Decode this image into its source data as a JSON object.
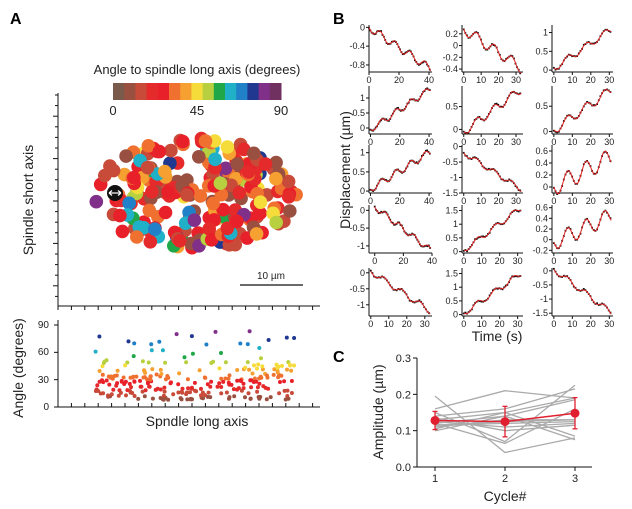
{
  "panels": {
    "a": "A",
    "b": "B",
    "c": "C"
  },
  "panel_a": {
    "colorbar": {
      "title": "Angle to spindle long axis (degrees)",
      "tick_labels": [
        "0",
        "45",
        "90"
      ],
      "range": [
        0,
        90
      ],
      "colors": [
        "#7a5a4a",
        "#9a5040",
        "#c84a38",
        "#e42a2a",
        "#e8202a",
        "#f07030",
        "#f5a030",
        "#f5dc3a",
        "#b8d040",
        "#20a848",
        "#20b0c8",
        "#2080c8",
        "#203890",
        "#803088",
        "#703060"
      ]
    },
    "map": {
      "ylabel": "Spindle short axis",
      "scale_bar_label": "10 µm",
      "marker_icon": "double-arrow-icon"
    },
    "angle_plot": {
      "ylabel": "Angle (degrees)",
      "xlabel": "Spndle long axis",
      "yticks": [
        "0",
        "30",
        "60",
        "90"
      ],
      "ylim": [
        0,
        90
      ]
    }
  },
  "chart_data": [
    {
      "type": "line",
      "panel": "B",
      "ylabel": "Displacement (µm)",
      "xlabel": "Time (s)",
      "series_colors": {
        "data": "#111111",
        "fit": "#e02020"
      },
      "subplots": [
        {
          "xlim": [
            0,
            42
          ],
          "xticks": [
            0,
            20,
            40
          ],
          "ylim": [
            -0.95,
            0.05
          ],
          "yticks": [
            0,
            -0.4,
            -0.8
          ],
          "trend": [
            0,
            -0.88
          ],
          "amplitude": 0.08
        },
        {
          "xlim": [
            -1,
            34
          ],
          "xticks": [
            0,
            10,
            20,
            30
          ],
          "ylim": [
            -0.45,
            0.35
          ],
          "yticks": [
            0.2,
            0,
            -0.2,
            -0.4
          ],
          "trend": [
            0.28,
            -0.38
          ],
          "amplitude": 0.09
        },
        {
          "xlim": [
            -1,
            32
          ],
          "xticks": [
            0,
            10,
            20,
            30
          ],
          "ylim": [
            -0.05,
            1.2
          ],
          "yticks": [
            0,
            0.5,
            1.0
          ],
          "trend": [
            0.05,
            1.08
          ],
          "amplitude": 0.09
        },
        {
          "xlim": [
            -1,
            42
          ],
          "xticks": [
            0,
            20,
            40
          ],
          "ylim": [
            -0.2,
            1.4
          ],
          "yticks": [
            0,
            0.5,
            1.0
          ],
          "trend": [
            -0.05,
            1.3
          ],
          "amplitude": 0.1
        },
        {
          "xlim": [
            -1,
            34
          ],
          "xticks": [
            0,
            10,
            20,
            30
          ],
          "ylim": [
            -0.1,
            0.95
          ],
          "yticks": [
            0,
            0.5
          ],
          "trend": [
            -0.05,
            0.88
          ],
          "amplitude": 0.09
        },
        {
          "xlim": [
            -1,
            32
          ],
          "xticks": [
            0,
            10,
            20,
            30
          ],
          "ylim": [
            -0.05,
            0.9
          ],
          "yticks": [
            0,
            0.5
          ],
          "trend": [
            0.03,
            0.82
          ],
          "amplitude": 0.09
        },
        {
          "xlim": [
            -1,
            42
          ],
          "xticks": [
            0,
            20,
            40
          ],
          "ylim": [
            -0.05,
            1.2
          ],
          "yticks": [
            0,
            0.5,
            1.0
          ],
          "trend": [
            0.05,
            1.02
          ],
          "amplitude": 0.09
        },
        {
          "xlim": [
            -1,
            34
          ],
          "xticks": [
            0,
            10,
            20,
            30
          ],
          "ylim": [
            -1.5,
            0.05
          ],
          "yticks": [
            0,
            -0.5,
            -1.0,
            -1.5
          ],
          "trend": [
            -0.2,
            -1.38
          ],
          "amplitude": 0.08
        },
        {
          "xlim": [
            -1,
            32
          ],
          "xticks": [
            0,
            10,
            20,
            30
          ],
          "ylim": [
            -0.1,
            0.7
          ],
          "yticks": [
            0,
            0.2,
            0.4,
            0.6
          ],
          "trend": [
            0.0,
            0.5
          ],
          "amplitude": 0.15
        },
        {
          "xlim": [
            -4,
            40
          ],
          "xticks": [
            0,
            20,
            40
          ],
          "ylim": [
            -1.2,
            0.15
          ],
          "yticks": [
            0,
            -0.5,
            -1.0
          ],
          "trend": [
            0.1,
            -1.12
          ],
          "amplitude": 0.08
        },
        {
          "xlim": [
            -1,
            33
          ],
          "xticks": [
            0,
            10,
            20,
            30
          ],
          "ylim": [
            -0.05,
            1.7
          ],
          "yticks": [
            0,
            0.5,
            1.0,
            1.5
          ],
          "trend": [
            0.05,
            1.6
          ],
          "amplitude": 0.1
        },
        {
          "xlim": [
            -1,
            32
          ],
          "xticks": [
            0,
            10,
            20,
            30
          ],
          "ylim": [
            -0.25,
            0.65
          ],
          "yticks": [
            -0.2,
            0,
            0.2,
            0.4,
            0.6
          ],
          "trend": [
            -0.05,
            0.45
          ],
          "amplitude": 0.15
        },
        {
          "xlim": [
            -1,
            34
          ],
          "xticks": [
            0,
            10,
            20,
            30
          ],
          "ylim": [
            -1.35,
            0.15
          ],
          "yticks": [
            0,
            -0.5,
            -1.0
          ],
          "trend": [
            0.05,
            -1.2
          ],
          "amplitude": 0.09
        },
        {
          "xlim": [
            -1,
            33
          ],
          "xticks": [
            0,
            10,
            20,
            30
          ],
          "ylim": [
            -0.05,
            1.7
          ],
          "yticks": [
            0,
            0.5,
            1.0,
            1.5
          ],
          "trend": [
            0.05,
            1.5
          ],
          "amplitude": 0.1
        },
        {
          "xlim": [
            -1,
            32
          ],
          "xticks": [
            0,
            10,
            20,
            30
          ],
          "ylim": [
            -1.6,
            0.1
          ],
          "yticks": [
            0,
            -0.5,
            -1.0,
            -1.5
          ],
          "trend": [
            0.05,
            -1.48
          ],
          "amplitude": 0.1
        }
      ]
    },
    {
      "type": "line",
      "panel": "C",
      "ylabel": "Amplitude (µm)",
      "xlabel": "Cycle#",
      "categories": [
        1,
        2,
        3
      ],
      "ylim": [
        0,
        0.3
      ],
      "yticks": [
        "0.0",
        "0.1",
        "0.2",
        "0.3"
      ],
      "xticks": [
        "1",
        "2",
        "3"
      ],
      "colors": {
        "individual": "#aaaaaa",
        "mean": "#e02030"
      },
      "individual": [
        [
          0.195,
          0.04,
          0.08
        ],
        [
          0.16,
          0.21,
          0.19
        ],
        [
          0.15,
          0.07,
          0.225
        ],
        [
          0.14,
          0.16,
          0.215
        ],
        [
          0.13,
          0.15,
          0.19
        ],
        [
          0.12,
          0.14,
          0.185
        ],
        [
          0.125,
          0.11,
          0.12
        ],
        [
          0.11,
          0.13,
          0.13
        ],
        [
          0.115,
          0.12,
          0.125
        ],
        [
          0.12,
          0.065,
          0.16
        ],
        [
          0.1,
          0.14,
          0.075
        ],
        [
          0.135,
          0.1,
          0.115
        ],
        [
          0.105,
          0.15,
          0.085
        ],
        [
          0.115,
          0.125,
          0.13
        ]
      ],
      "mean": [
        0.128,
        0.125,
        0.148
      ],
      "error": [
        0.025,
        0.042,
        0.043
      ]
    }
  ]
}
